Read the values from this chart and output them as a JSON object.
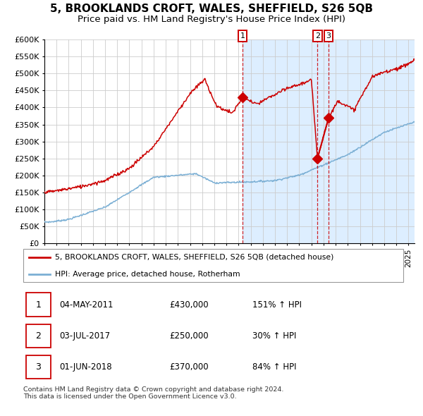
{
  "title": "5, BROOKLANDS CROFT, WALES, SHEFFIELD, S26 5QB",
  "subtitle": "Price paid vs. HM Land Registry's House Price Index (HPI)",
  "red_label": "5, BROOKLANDS CROFT, WALES, SHEFFIELD, S26 5QB (detached house)",
  "blue_label": "HPI: Average price, detached house, Rotherham",
  "sale_events": [
    {
      "label": "1",
      "date_x": 2011.33,
      "price": 430000
    },
    {
      "label": "2",
      "date_x": 2017.5,
      "price": 250000
    },
    {
      "label": "3",
      "date_x": 2018.42,
      "price": 370000
    }
  ],
  "sale_table": [
    {
      "label": "1",
      "date": "04-MAY-2011",
      "price": "£430,000",
      "pct": "151% ↑ HPI"
    },
    {
      "label": "2",
      "date": "03-JUL-2017",
      "price": "£250,000",
      "pct": "30% ↑ HPI"
    },
    {
      "label": "3",
      "date": "01-JUN-2018",
      "price": "£370,000",
      "pct": "84% ↑ HPI"
    }
  ],
  "footer": "Contains HM Land Registry data © Crown copyright and database right 2024.\nThis data is licensed under the Open Government Licence v3.0.",
  "ylim": [
    0,
    600000
  ],
  "yticks": [
    0,
    50000,
    100000,
    150000,
    200000,
    250000,
    300000,
    350000,
    400000,
    450000,
    500000,
    550000,
    600000
  ],
  "xlim_start": 1995.0,
  "xlim_end": 2025.5,
  "red_color": "#cc0000",
  "blue_color": "#7bafd4",
  "shade_color": "#ddeeff",
  "grid_color": "#cccccc",
  "title_fontsize": 11,
  "subtitle_fontsize": 9.5,
  "axis_fontsize": 8
}
